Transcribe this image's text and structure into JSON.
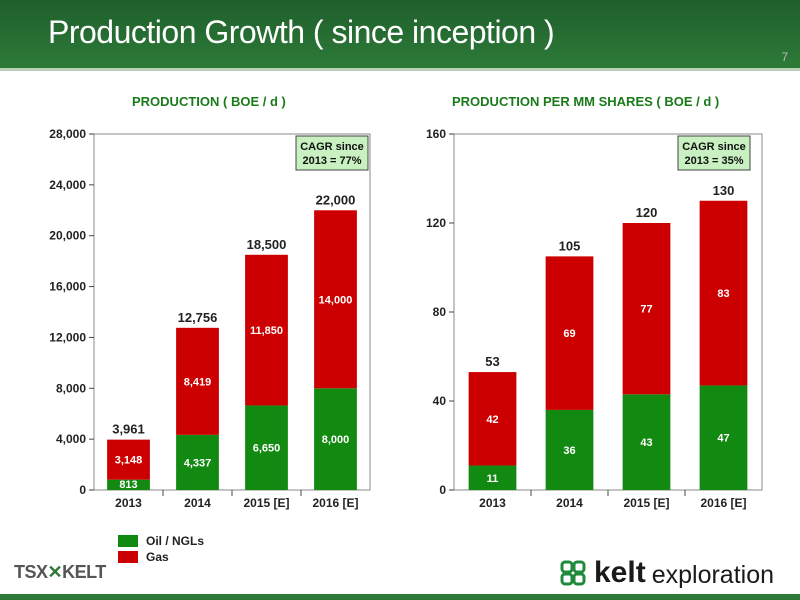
{
  "slide": {
    "title": "Production Growth ( since inception )",
    "page_number": "7"
  },
  "logos": {
    "tsx": "TSX",
    "kelt_word": "kelt",
    "kelt_sub": "exploration"
  },
  "colors": {
    "oil": "#128a12",
    "gas": "#cc0000",
    "header": "#2d7a38",
    "title_green": "#1a7a1a"
  },
  "legend": {
    "oil_label": "Oil / NGLs",
    "gas_label": "Gas"
  },
  "chart_data": [
    {
      "type": "bar",
      "stacked": true,
      "title": "PRODUCTION ( BOE / d )",
      "categories": [
        "2013",
        "2014",
        "2015 [E]",
        "2016 [E]"
      ],
      "series": [
        {
          "name": "Oil / NGLs",
          "values": [
            813,
            4337,
            6650,
            8000
          ],
          "labels": [
            "813",
            "4,337",
            "6,650",
            "8,000"
          ]
        },
        {
          "name": "Gas",
          "values": [
            3148,
            8419,
            11850,
            14000
          ],
          "labels": [
            "3,148",
            "8,419",
            "11,850",
            "14,000"
          ]
        }
      ],
      "totals": [
        "3,961",
        "12,756",
        "18,500",
        "22,000"
      ],
      "ylim": [
        0,
        28000
      ],
      "yticks": [
        "0",
        "4,000",
        "8,000",
        "12,000",
        "16,000",
        "20,000",
        "24,000",
        "28,000"
      ],
      "annotation": [
        "CAGR since",
        "2013 = 77%"
      ],
      "grid": false
    },
    {
      "type": "bar",
      "stacked": true,
      "title": "PRODUCTION PER MM SHARES ( BOE / d )",
      "categories": [
        "2013",
        "2014",
        "2015 [E]",
        "2016 [E]"
      ],
      "series": [
        {
          "name": "Oil / NGLs",
          "values": [
            11,
            36,
            43,
            47
          ],
          "labels": [
            "11",
            "36",
            "43",
            "47"
          ]
        },
        {
          "name": "Gas",
          "values": [
            42,
            69,
            77,
            83
          ],
          "labels": [
            "42",
            "69",
            "77",
            "83"
          ]
        }
      ],
      "totals": [
        "53",
        "105",
        "120",
        "130"
      ],
      "ylim": [
        0,
        160
      ],
      "yticks": [
        "0",
        "40",
        "80",
        "120",
        "160"
      ],
      "annotation": [
        "CAGR since",
        "2013 = 35%"
      ],
      "grid": false
    }
  ]
}
